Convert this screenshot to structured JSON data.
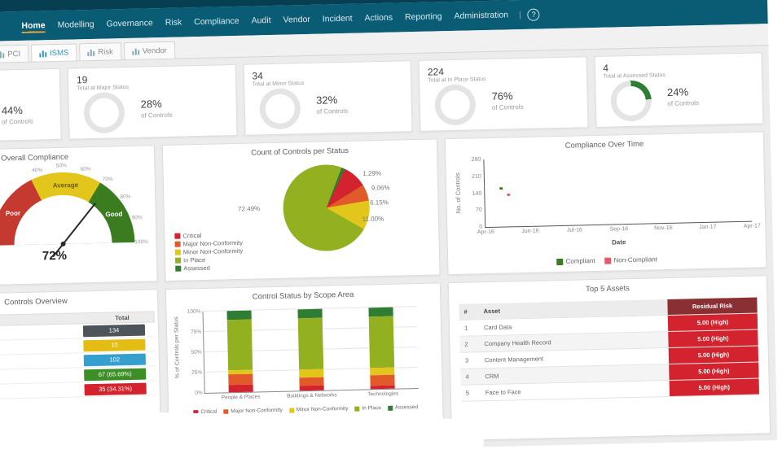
{
  "colors": {
    "teal": "#0a5b74",
    "teal_dark": "#063f51",
    "accent_blue": "#2e93c4",
    "red": "#d2232e",
    "orange": "#e2592a",
    "yellow": "#e3bd13",
    "olive": "#93b021",
    "green": "#2e7d32",
    "maroon": "#8a3033",
    "slate": "#4d555b",
    "blue_cell": "#35a0cf",
    "gauge_red": "#c43a31",
    "gauge_yellow": "#e3c61c",
    "gauge_green": "#3a7c1f"
  },
  "nav": {
    "items": [
      "Home",
      "Modelling",
      "Governance",
      "Risk",
      "Compliance",
      "Audit",
      "Vendor",
      "Incident",
      "Actions",
      "Reporting",
      "Administration"
    ],
    "active": "Home",
    "separator": "|",
    "help_icon": "?"
  },
  "tabs": [
    {
      "label": "PCI",
      "active": false
    },
    {
      "label": "ISMS",
      "active": true
    },
    {
      "label": "Risk",
      "active": false
    },
    {
      "label": "Vendor",
      "active": false
    }
  ],
  "kpi_cards": [
    {
      "total": "",
      "label": "",
      "pct": "44%",
      "pct_sub": "of Controls",
      "clipped": true
    },
    {
      "total": "19",
      "label": "Total at Major Status",
      "pct": "28%",
      "pct_sub": "of Controls"
    },
    {
      "total": "34",
      "label": "Total at Minor Status",
      "pct": "32%",
      "pct_sub": "of Controls"
    },
    {
      "total": "224",
      "label": "Total at In Place Status",
      "pct": "76%",
      "pct_sub": "of Controls"
    },
    {
      "total": "4",
      "label": "Total at Assessed Status",
      "pct": "24%",
      "pct_sub": "of Controls",
      "arc_pct": 24,
      "arc_color": "#2e7d32"
    }
  ],
  "chart_data": [
    {
      "name": "overall-compliance-gauge",
      "type": "gauge",
      "title": "Overall Compliance",
      "value": 72,
      "value_label": "72%",
      "bands": [
        {
          "label": "Poor",
          "to": 36,
          "color": "#c43a31"
        },
        {
          "label": "Average",
          "to": 68,
          "color": "#e3c61c"
        },
        {
          "label": "Good",
          "to": 100,
          "color": "#3a7c1f"
        }
      ],
      "tick_labels": [
        "40%",
        "50%",
        "60%",
        "70%",
        "80%",
        "90%",
        "100%"
      ]
    },
    {
      "name": "count-of-controls-per-status",
      "type": "pie",
      "title": "Count of Controls per Status",
      "slices": [
        {
          "label": "Assessed",
          "value": 1.29,
          "color": "#2e7d32"
        },
        {
          "label": "Critical",
          "value": 9.06,
          "color": "#d2232e"
        },
        {
          "label": "Major Non-Conformity",
          "value": 6.15,
          "color": "#e2592a"
        },
        {
          "label": "Minor Non-Conformity",
          "value": 11.0,
          "color": "#e3c61c"
        },
        {
          "label": "In Place",
          "value": 72.49,
          "color": "#93b021"
        }
      ],
      "legend": [
        "Critical",
        "Major Non-Conformity",
        "Minor Non-Conformity",
        "In Place",
        "Assessed"
      ],
      "legend_position": "bottom-left"
    },
    {
      "name": "compliance-over-time",
      "type": "line",
      "title": "Compliance Over Time",
      "xlabel": "Date",
      "ylabel": "No. of Controls",
      "y_ticks": [
        0,
        70,
        140,
        210,
        280
      ],
      "ylim": [
        0,
        280
      ],
      "x_ticks": [
        "Apr-16",
        "Jun-16",
        "Jul-16",
        "Sep-16",
        "Nov-16",
        "Jan-17",
        "Apr-17"
      ],
      "series": [
        {
          "name": "Compliant",
          "color": "#3a7c1f",
          "points": [
            {
              "x_frac": 0.06,
              "y": 158
            }
          ]
        },
        {
          "name": "Non-Compliant",
          "color": "#e8596c",
          "points": [
            {
              "x_frac": 0.09,
              "y": 132
            }
          ]
        }
      ],
      "legend_position": "bottom"
    },
    {
      "name": "control-status-by-scope-area",
      "type": "stacked_bar",
      "title": "Control Status by Scope Area",
      "ylabel": "% of Controls per Status",
      "y_ticks": [
        "0%",
        "25%",
        "50%",
        "75%",
        "100%"
      ],
      "categories": [
        "People & Places",
        "Buildings & Networks",
        "Technologies"
      ],
      "series": [
        {
          "name": "Critical",
          "color": "#d2232e",
          "values": [
            9,
            6,
            4
          ]
        },
        {
          "name": "Major Non-Conformity",
          "color": "#e2592a",
          "values": [
            13,
            10,
            13
          ]
        },
        {
          "name": "Minor Non-Conformity",
          "color": "#e3c61c",
          "values": [
            5,
            10,
            9
          ]
        },
        {
          "name": "In Place",
          "color": "#93b021",
          "values": [
            62,
            63,
            63
          ]
        },
        {
          "name": "Assessed",
          "color": "#2e7d32",
          "values": [
            11,
            11,
            11
          ]
        }
      ],
      "legend_position": "bottom"
    }
  ],
  "controls_overview": {
    "title": "Controls Overview",
    "header": "Total",
    "rows": [
      {
        "value": "134",
        "color": "#4d555b"
      },
      {
        "value": "10",
        "color": "#e3bd13"
      },
      {
        "value": "102",
        "color": "#35a0cf"
      },
      {
        "value": "67 (65.69%)",
        "color": "#3e8e27"
      },
      {
        "value": "35 (34.31%)",
        "color": "#d2232e"
      }
    ]
  },
  "top5_assets": {
    "title": "Top 5 Assets",
    "columns": [
      "#",
      "Asset",
      "Residual Risk"
    ],
    "rows": [
      {
        "num": "1",
        "asset": "Card Data",
        "risk": "5.00 (High)"
      },
      {
        "num": "2",
        "asset": "Company Health Record",
        "risk": "5.00 (High)"
      },
      {
        "num": "3",
        "asset": "Content Management",
        "risk": "5.00 (High)"
      },
      {
        "num": "4",
        "asset": "CRM",
        "risk": "5.00 (High)"
      },
      {
        "num": "5",
        "asset": "Face to Face",
        "risk": "5.00 (High)"
      }
    ]
  }
}
